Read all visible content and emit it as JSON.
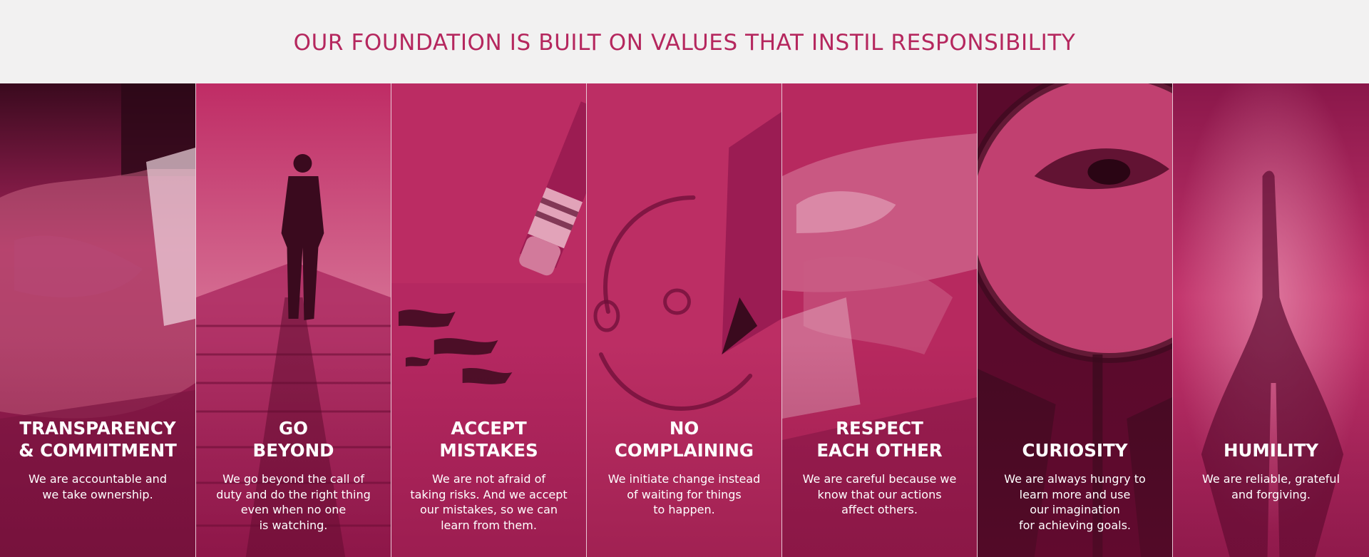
{
  "header": {
    "title": "OUR FOUNDATION IS BUILT ON VALUES THAT INSTIL RESPONSIBILITY"
  },
  "colors": {
    "accent": "#b5275e",
    "panel": "#bb2c63",
    "header_bg": "#f2f1f1"
  },
  "values": [
    {
      "icon": "hand-signing-icon",
      "title_lines": [
        "TRANSPARENCY",
        "& COMMITMENT"
      ],
      "desc_lines": [
        "We are accountable and",
        "we take ownership."
      ]
    },
    {
      "icon": "walking-man-icon",
      "title_lines": [
        "GO",
        "BEYOND"
      ],
      "desc_lines": [
        "We go beyond the call of",
        "duty and do the right thing",
        "even when no one",
        "is watching."
      ]
    },
    {
      "icon": "pencil-eraser-icon",
      "title_lines": [
        "ACCEPT",
        "MISTAKES"
      ],
      "desc_lines": [
        "We are not afraid of",
        "taking risks. And we accept",
        "our mistakes, so we can",
        "learn from them."
      ]
    },
    {
      "icon": "smiley-drawing-icon",
      "title_lines": [
        "NO",
        "COMPLAINING"
      ],
      "desc_lines": [
        "We initiate change instead",
        "of waiting for things",
        "to happen."
      ]
    },
    {
      "icon": "holding-hands-icon",
      "title_lines": [
        "RESPECT",
        "EACH OTHER"
      ],
      "desc_lines": [
        "We are careful because we",
        "know that our actions",
        "affect others."
      ]
    },
    {
      "icon": "magnifying-glass-eye-icon",
      "title_lines": [
        "CURIOSITY"
      ],
      "desc_lines": [
        "We are always hungry to",
        "learn more and use",
        "our imagination",
        "for achieving goals."
      ]
    },
    {
      "icon": "praying-hands-icon",
      "title_lines": [
        "HUMILITY"
      ],
      "desc_lines": [
        "We are reliable, grateful",
        "and forgiving."
      ]
    }
  ]
}
